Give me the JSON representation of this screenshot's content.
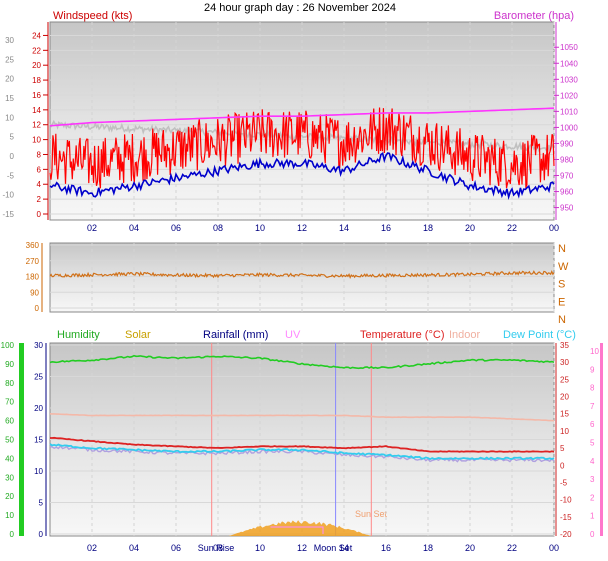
{
  "title": "24 hour graph day : 26 November 2024",
  "x_ticks": [
    "02",
    "04",
    "06",
    "08",
    "10",
    "12",
    "14",
    "16",
    "18",
    "20",
    "22",
    "00"
  ],
  "colors": {
    "wind": "#ff0000",
    "gust": "#ee0000",
    "baro": "#ff33ff",
    "oldbaro": "#c0c0c0",
    "avgwind": "#0000cc",
    "direction": "#d07018",
    "humidity": "#22cc22",
    "solar": "#c8a000",
    "rain": "#000080",
    "uv": "#ff88ff",
    "temp": "#dd2222",
    "indoor": "#f4b8a8",
    "dew": "#33ccee",
    "solarfill": "#f0a020",
    "apparent": "#b0a0e0"
  },
  "panel1": {
    "wind_label": "Windspeed (kts)",
    "baro_label": "Barometer (hpa)",
    "left_temp_ticks": [
      "30",
      "25",
      "20",
      "15",
      "10",
      "5",
      "0",
      "-5",
      "-10",
      "-15"
    ],
    "wind_ticks": [
      "24",
      "22",
      "20",
      "18",
      "16",
      "14",
      "12",
      "10",
      "8",
      "6",
      "4",
      "2",
      "0"
    ],
    "baro_ticks": [
      "1050",
      "1040",
      "1030",
      "1020",
      "1010",
      "1000",
      "990",
      "980",
      "970",
      "960",
      "950"
    ]
  },
  "panel2": {
    "deg_ticks": [
      "360",
      "270",
      "180",
      "90",
      "0"
    ],
    "compass": [
      "N",
      "W",
      "S",
      "E",
      "N"
    ]
  },
  "panel3": {
    "labels": {
      "humidity": "Humidity",
      "solar": "Solar",
      "rain": "Rainfall (mm)",
      "uv": "UV",
      "temp": "Temperature (°C)",
      "indoor": "Indoor",
      "dew": "Dew Point (°C)"
    },
    "hum_ticks": [
      "100",
      "90",
      "80",
      "70",
      "60",
      "50",
      "40",
      "30",
      "20",
      "10",
      "0"
    ],
    "rain_ticks": [
      "30",
      "25",
      "20",
      "15",
      "10",
      "5",
      "0"
    ],
    "temp_ticks": [
      "35",
      "30",
      "25",
      "20",
      "15",
      "10",
      "5",
      "0",
      "-5",
      "-10",
      "-15",
      "-20"
    ],
    "uv_ticks": [
      "10",
      "9",
      "8",
      "7",
      "6",
      "5",
      "4",
      "3",
      "2",
      "1",
      "0"
    ],
    "sunrise": "Sun Rise",
    "sunset": "Sun Set",
    "moonset": "Moon Set",
    "tick_overlay": "08 1012 1416"
  },
  "chart_data": [
    {
      "type": "line",
      "title": "24 hour graph day : 26 November 2024",
      "ylabel": "Windspeed (kts)",
      "y2label": "Barometer (hpa)",
      "ylim": [
        0,
        25
      ],
      "y2lim": [
        950,
        1060
      ],
      "x": [
        0,
        2,
        4,
        6,
        8,
        10,
        12,
        14,
        16,
        18,
        20,
        22,
        24
      ],
      "series": [
        {
          "name": "Windspeed (kts)",
          "values": [
            7,
            6,
            7,
            8,
            9,
            10,
            10,
            9,
            11,
            9,
            7,
            6,
            7
          ]
        },
        {
          "name": "Barometer (hpa)",
          "values": [
            1001,
            1003,
            1004,
            1005,
            1006,
            1007,
            1007,
            1008,
            1009,
            1009,
            1010,
            1011,
            1012
          ]
        }
      ]
    },
    {
      "type": "line",
      "ylabel": "Direction",
      "ylim": [
        0,
        360
      ],
      "x": [
        0,
        2,
        4,
        6,
        8,
        10,
        12,
        14,
        16,
        18,
        20,
        22,
        24
      ],
      "series": [
        {
          "name": "Wind direction",
          "values": [
            185,
            190,
            195,
            188,
            185,
            190,
            187,
            183,
            186,
            189,
            192,
            200,
            202
          ]
        }
      ]
    },
    {
      "type": "line",
      "ylabel": "Temperature (°C)",
      "ylim": [
        -20,
        35
      ],
      "x": [
        0,
        2,
        4,
        6,
        8,
        10,
        12,
        14,
        16,
        18,
        20,
        22,
        24
      ],
      "series": [
        {
          "name": "Humidity",
          "values": [
            91,
            92,
            94,
            93,
            94,
            93,
            90,
            88,
            88,
            90,
            92,
            92,
            91
          ]
        },
        {
          "name": "Temperature (°C)",
          "values": [
            8,
            7,
            6,
            5.5,
            5,
            5.5,
            5.5,
            5,
            5.5,
            4,
            4,
            4,
            4
          ]
        },
        {
          "name": "Indoor",
          "values": [
            15,
            14.5,
            14.5,
            14.5,
            14.5,
            14.5,
            14.5,
            14.5,
            14,
            14,
            14,
            13.5,
            13
          ]
        },
        {
          "name": "Dew Point (°C)",
          "values": [
            6,
            5,
            4.5,
            4,
            4,
            4.5,
            4.5,
            3.5,
            3,
            2,
            2,
            2,
            2
          ]
        },
        {
          "name": "Solar",
          "values": [
            0,
            0,
            0,
            0,
            0,
            5,
            20,
            8,
            0,
            0,
            0,
            0,
            0
          ]
        },
        {
          "name": "Rainfall (mm)",
          "values": [
            0,
            0,
            0,
            0,
            0,
            0,
            0,
            0,
            0,
            0,
            0,
            0,
            0
          ]
        }
      ]
    }
  ]
}
